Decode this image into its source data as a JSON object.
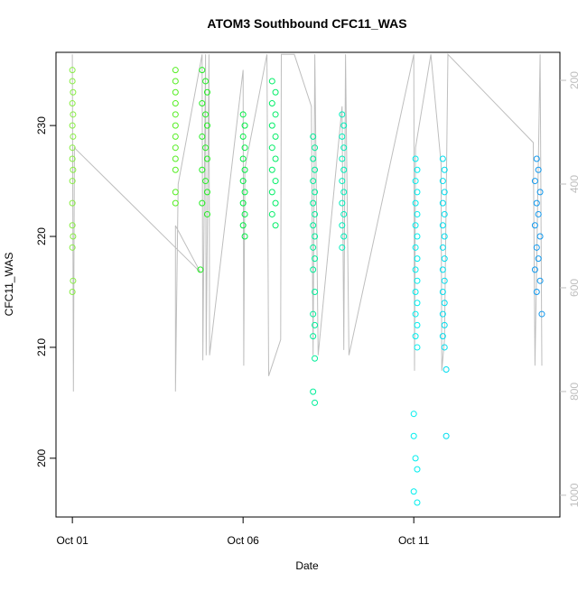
{
  "chart_data": {
    "type": "scatter",
    "title": "ATOM3 Southbound CFC11_WAS",
    "x_label": "Date",
    "y_label": "CFC11_WAS",
    "xlim": [
      -0.48,
      14.28
    ],
    "xticks": [
      {
        "value": 0,
        "label": "Oct 01"
      },
      {
        "value": 5,
        "label": "Oct 06"
      },
      {
        "value": 10,
        "label": "Oct 11"
      }
    ],
    "ylim": [
      194.7,
      236.6
    ],
    "yticks": [
      200,
      210,
      220,
      230
    ],
    "y2lim": [
      1042,
      146
    ],
    "y2ticks": [
      200,
      400,
      600,
      800,
      1000
    ],
    "y2_color": "#bebebe",
    "series": [
      {
        "type": "line",
        "axis": "y2",
        "color": "#bebebe",
        "x": [
          0.0,
          0.03,
          0.06,
          3.75,
          3.02,
          3.02,
          3.1,
          3.8,
          3.82,
          3.9,
          3.92,
          4.0,
          4.02,
          5.0,
          5.02,
          5.05,
          5.7,
          5.75,
          6.1,
          6.12,
          6.5,
          7.0,
          7.05,
          7.1,
          7.2,
          7.9,
          7.95,
          8.0,
          8.1,
          10.0,
          10.02,
          10.05,
          10.5,
          10.8,
          10.82,
          10.9,
          11.0,
          13.5,
          13.55,
          13.7,
          13.75
        ],
        "values": [
          150,
          800,
          330,
          570,
          480,
          800,
          400,
          150,
          740,
          150,
          730,
          150,
          730,
          180,
          750,
          370,
          150,
          770,
          700,
          150,
          150,
          250,
          730,
          150,
          730,
          250,
          720,
          150,
          730,
          150,
          760,
          330,
          150,
          360,
          760,
          700,
          150,
          320,
          750,
          150,
          750
        ]
      },
      {
        "color": "#88ee44",
        "x": [
          0,
          0,
          0.02,
          0,
          0.02,
          0,
          0.02,
          0,
          0,
          0.02,
          0,
          0,
          0,
          0.02,
          0,
          0.02,
          0
        ],
        "values": [
          235,
          234,
          233,
          232,
          231,
          230,
          229,
          228,
          227,
          226,
          225,
          223,
          221,
          220,
          219,
          216,
          215
        ]
      },
      {
        "color": "#55ee22",
        "x": [
          3.02,
          3.02,
          3.02,
          3.02,
          3.02,
          3.02,
          3.02,
          3.02,
          3.02,
          3.02,
          3.02,
          3.02
        ],
        "values": [
          235,
          234,
          233,
          232,
          231,
          230,
          229,
          228,
          227,
          226,
          224,
          223
        ]
      },
      {
        "color": "#22ee22",
        "x": [
          3.8,
          3.9,
          3.95,
          3.8,
          3.9,
          3.95,
          3.8,
          3.9,
          3.95,
          3.8,
          3.9,
          3.95,
          3.8,
          3.95,
          3.75
        ],
        "values": [
          235,
          234,
          233,
          232,
          231,
          230,
          229,
          228,
          227,
          226,
          225,
          224,
          223,
          222,
          217
        ]
      },
      {
        "color": "#00ee44",
        "x": [
          5,
          5.05,
          5,
          5.05,
          5,
          5.05,
          5,
          5.05,
          5,
          5.05,
          5,
          5.05
        ],
        "values": [
          231,
          230,
          229,
          228,
          227,
          226,
          225,
          224,
          223,
          222,
          221,
          220
        ]
      },
      {
        "color": "#00ee66",
        "x": [
          5.85,
          5.95,
          5.85,
          5.95,
          5.85,
          5.95,
          5.85,
          5.95,
          5.85,
          5.95,
          5.85,
          5.95,
          5.85,
          5.95
        ],
        "values": [
          234,
          233,
          232,
          231,
          230,
          229,
          228,
          227,
          226,
          225,
          224,
          223,
          222,
          221
        ]
      },
      {
        "color": "#00ee99",
        "x": [
          7.05,
          7.1,
          7.05,
          7.1,
          7.05,
          7.1,
          7.05,
          7.1,
          7.05,
          7.1,
          7.05,
          7.1,
          7.05,
          7.1,
          7.05,
          7.1,
          7.05,
          7.1,
          7.05,
          7.1
        ],
        "values": [
          229,
          228,
          227,
          226,
          225,
          224,
          223,
          222,
          221,
          220,
          219,
          218,
          217,
          215,
          213,
          212,
          211,
          209,
          206,
          205
        ]
      },
      {
        "color": "#00eebb",
        "x": [
          7.9,
          7.95,
          7.9,
          7.95,
          7.9,
          7.95,
          7.9,
          7.95,
          7.9,
          7.95,
          7.9,
          7.95,
          7.9
        ],
        "values": [
          231,
          230,
          229,
          228,
          227,
          226,
          225,
          224,
          223,
          222,
          221,
          220,
          219
        ]
      },
      {
        "color": "#00eeee",
        "x": [
          10.05,
          10.1,
          10.05,
          10.1,
          10.05,
          10.1,
          10.05,
          10.1,
          10.05,
          10.1,
          10.05,
          10.1,
          10.05,
          10.1,
          10.05,
          10.1,
          10.05,
          10.1,
          10.0,
          10.0,
          10.05,
          10.1,
          10.0,
          10.1
        ],
        "values": [
          227,
          226,
          225,
          224,
          223,
          222,
          221,
          220,
          219,
          218,
          217,
          216,
          215,
          214,
          213,
          212,
          211,
          210,
          204,
          202,
          200,
          199,
          197,
          196
        ]
      },
      {
        "color": "#00ddee",
        "x": [
          10.85,
          10.9,
          10.85,
          10.9,
          10.85,
          10.9,
          10.85,
          10.9,
          10.85,
          10.9,
          10.85,
          10.9,
          10.85,
          10.9,
          10.85,
          10.9,
          10.85,
          10.9,
          10.95,
          10.95
        ],
        "values": [
          227,
          226,
          225,
          224,
          223,
          222,
          221,
          220,
          219,
          218,
          217,
          216,
          215,
          214,
          213,
          212,
          211,
          210,
          208,
          202
        ]
      },
      {
        "color": "#1199ee",
        "x": [
          13.6,
          13.65,
          13.55,
          13.7,
          13.6,
          13.65,
          13.55,
          13.7,
          13.6,
          13.65,
          13.55,
          13.7,
          13.6,
          13.75
        ],
        "values": [
          227,
          226,
          225,
          224,
          223,
          222,
          221,
          220,
          219,
          218,
          217,
          216,
          215,
          213
        ]
      }
    ]
  }
}
